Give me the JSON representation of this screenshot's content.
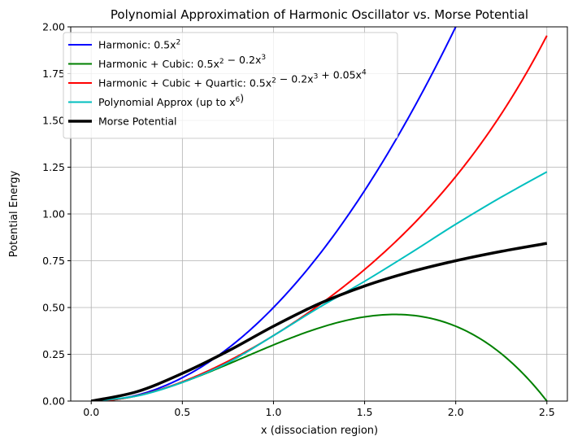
{
  "chart_data": {
    "type": "line",
    "title": "Polynomial Approximation of Harmonic Oscillator vs. Morse Potential",
    "xlabel": "x (dissociation region)",
    "ylabel": "Potential Energy",
    "xlim": [
      -0.1125,
      2.6125
    ],
    "ylim": [
      0,
      2.0
    ],
    "x_ticks": [
      0.0,
      0.5,
      1.0,
      1.5,
      2.0,
      2.5
    ],
    "x_tick_labels": [
      "0.0",
      "0.5",
      "1.0",
      "1.5",
      "2.0",
      "2.5"
    ],
    "y_ticks": [
      0.0,
      0.25,
      0.5,
      0.75,
      1.0,
      1.25,
      1.5,
      1.75,
      2.0
    ],
    "y_tick_labels": [
      "0.00",
      "0.25",
      "0.50",
      "0.75",
      "1.00",
      "1.25",
      "1.50",
      "1.75",
      "2.00"
    ],
    "grid": true,
    "legend_position": "top-left",
    "x_domain": [
      0,
      2.5
    ],
    "series": [
      {
        "name": "Harmonic: 0.5x²",
        "legend": {
          "pre": "Harmonic: 0.5",
          "terms": [
            [
              "x",
              "2"
            ]
          ],
          "post": ""
        },
        "color": "#0000ff",
        "width": 2,
        "coefficients": [
          0,
          0,
          0.5
        ]
      },
      {
        "name": "Harmonic + Cubic: 0.5x² − 0.2x³",
        "legend": {
          "pre": "Harmonic + Cubic: 0.5",
          "terms": [
            [
              "x",
              "2"
            ],
            [
              " − 0.2x",
              "3"
            ]
          ],
          "post": ""
        },
        "color": "#008000",
        "width": 2,
        "coefficients": [
          0,
          0,
          0.5,
          -0.2
        ]
      },
      {
        "name": "Harmonic + Cubic + Quartic: 0.5x² − 0.2x³ + 0.05x⁴",
        "legend": {
          "pre": "Harmonic + Cubic + Quartic: 0.5",
          "terms": [
            [
              "x",
              "2"
            ],
            [
              " − 0.2x",
              "3"
            ],
            [
              " + 0.05x",
              "4"
            ]
          ],
          "post": ""
        },
        "color": "#ff0000",
        "width": 2,
        "coefficients": [
          0,
          0,
          0.5,
          -0.2,
          0.05
        ]
      },
      {
        "name": "Polynomial Approx (up to x⁶)",
        "legend": {
          "pre": "Polynomial Approx (up to ",
          "terms": [
            [
              "x",
              "6"
            ]
          ],
          "post": ")"
        },
        "color": "#00bfbf",
        "width": 2,
        "points": [
          [
            0.0,
            0.0
          ],
          [
            0.25,
            0.027
          ],
          [
            0.5,
            0.1
          ],
          [
            0.75,
            0.205
          ],
          [
            1.0,
            0.35
          ],
          [
            1.25,
            0.5
          ],
          [
            1.5,
            0.64
          ],
          [
            1.75,
            0.79
          ],
          [
            2.0,
            0.945
          ],
          [
            2.25,
            1.09
          ],
          [
            2.5,
            1.225
          ]
        ]
      },
      {
        "name": "Morse Potential",
        "legend": {
          "pre": "Morse Potential",
          "terms": [],
          "post": ""
        },
        "color": "#000000",
        "width": 3.5,
        "points": [
          [
            0.0,
            0.0
          ],
          [
            0.25,
            0.05
          ],
          [
            0.5,
            0.148
          ],
          [
            0.75,
            0.267
          ],
          [
            1.0,
            0.4
          ],
          [
            1.25,
            0.52
          ],
          [
            1.5,
            0.615
          ],
          [
            1.75,
            0.69
          ],
          [
            2.0,
            0.75
          ],
          [
            2.25,
            0.8
          ],
          [
            2.5,
            0.843
          ]
        ]
      }
    ]
  }
}
